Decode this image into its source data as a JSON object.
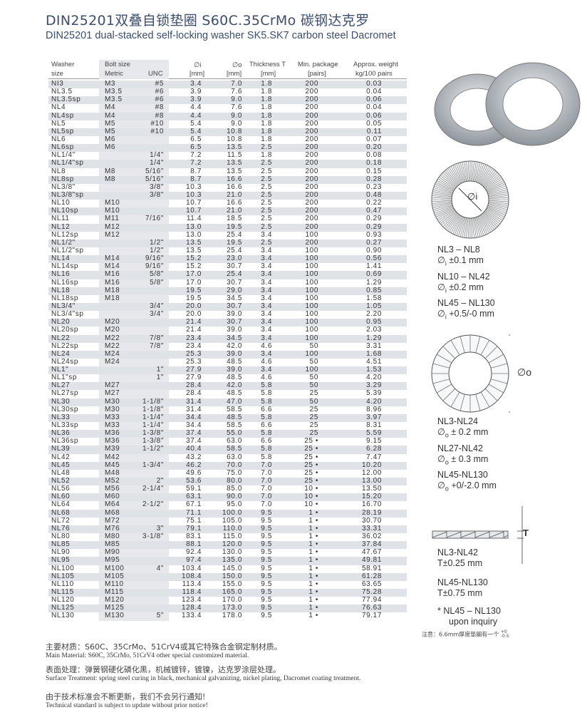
{
  "title_cn": "DIN25201双叠自锁垫圈 S60C.35CrMo 碳钢达克罗",
  "title_en": "DIN25201 dual-stacked self-locking washer SK5.SK7 carbon steel Dacromet",
  "headers": {
    "washer1": "Washer",
    "washer2": "size",
    "bolt": "Bolt size",
    "metric": "Metric",
    "unc": "UNC",
    "di": "∅i",
    "di_unit": "[mm]",
    "do": "∅o",
    "do_unit": "[mm]",
    "t": "Thickness T",
    "t_unit": "[mm]",
    "pkg": "Min. package",
    "pkg_unit": "[pairs]",
    "wt": "Approx. weight",
    "wt_unit": "kg/100 pairs"
  },
  "rows": [
    [
      "NI3",
      "M3",
      "#5",
      "3.4",
      "7.0",
      "1.8",
      "200",
      "0.03"
    ],
    [
      "NL3.5",
      "M3.5",
      "#6",
      "3.9",
      "7.6",
      "1.8",
      "200",
      "0.04"
    ],
    [
      "NL3.5sp",
      "M3.5",
      "#6",
      "3.9",
      "9.0",
      "1.8",
      "200",
      "0.06"
    ],
    [
      "NL4",
      "M4",
      "#8",
      "4.4",
      "7.6",
      "1.8",
      "200",
      "0.04"
    ],
    [
      "NL4sp",
      "M4",
      "#8",
      "4.4",
      "9.0",
      "1.8",
      "200",
      "0.06"
    ],
    [
      "NL5",
      "M5",
      "#10",
      "5.4",
      "9.0",
      "1.8",
      "200",
      "0.05"
    ],
    [
      "NL5sp",
      "M5",
      "#10",
      "5.4",
      "10.8",
      "1.8",
      "200",
      "0.11"
    ],
    [
      "NL6",
      "M6",
      "",
      "6.5",
      "10.8",
      "1.8",
      "200",
      "0.07"
    ],
    [
      "NL6sp",
      "M6",
      "",
      "6.5",
      "13.5",
      "2.5",
      "200",
      "0.20"
    ],
    [
      "NL1/4\"",
      "",
      "1/4\"",
      "7.2",
      "11.5",
      "1.8",
      "200",
      "0.08"
    ],
    [
      "NL1/4\"sp",
      "",
      "1/4\"",
      "7.2",
      "13.5",
      "2.5",
      "200",
      "0.18"
    ],
    [
      "NL8",
      "M8",
      "5/16\"",
      "8.7",
      "13.5",
      "2.5",
      "200",
      "0.15"
    ],
    [
      "NL8sp",
      "M8",
      "5/16\"",
      "8.7",
      "16.6",
      "2.5",
      "200",
      "0.28"
    ],
    [
      "NL3/8\"",
      "",
      "3/8\"",
      "10.3",
      "16.6",
      "2.5",
      "200",
      "0.23"
    ],
    [
      "NL3/8\"sp",
      "",
      "3/8\"",
      "10.3",
      "21.0",
      "2.5",
      "200",
      "0.48"
    ],
    [
      "NL10",
      "M10",
      "",
      "10.7",
      "16.6",
      "2.5",
      "200",
      "0.22"
    ],
    [
      "NL10sp",
      "M10",
      "",
      "10.7",
      "21.0",
      "2.5",
      "200",
      "0.47"
    ],
    [
      "NL11",
      "M11",
      "7/16\"",
      "11.4",
      "18.5",
      "2.5",
      "200",
      "0.29"
    ],
    [
      "NL12",
      "M12",
      "",
      "13.0",
      "19.5",
      "2.5",
      "200",
      "0.29"
    ],
    [
      "NL12sp",
      "M12",
      "",
      "13.0",
      "25.4",
      "3.4",
      "100",
      "0.93"
    ],
    [
      "NL1/2\"",
      "",
      "1/2\"",
      "13.5",
      "19.5",
      "2.5",
      "200",
      "0.27"
    ],
    [
      "NL1/2\"sp",
      "",
      "1/2\"",
      "13.5",
      "25.4",
      "3.4",
      "100",
      "0.90"
    ],
    [
      "NL14",
      "M14",
      "9/16\"",
      "15.2",
      "23.0",
      "3.4",
      "100",
      "0.56"
    ],
    [
      "NL14sp",
      "M14",
      "9/16\"",
      "15.2",
      "30.7",
      "3.4",
      "100",
      "1.41"
    ],
    [
      "NL16",
      "M16",
      "5/8\"",
      "17.0",
      "25.4",
      "3.4",
      "100",
      "0.69"
    ],
    [
      "NL16sp",
      "M16",
      "5/8\"",
      "17.0",
      "30.7",
      "3.4",
      "100",
      "1.29"
    ],
    [
      "NL18",
      "M18",
      "",
      "19.5",
      "29.0",
      "3.4",
      "100",
      "0.85"
    ],
    [
      "NL18sp",
      "M18",
      "",
      "19.5",
      "34.5",
      "3.4",
      "100",
      "1.58"
    ],
    [
      "NL3/4\"",
      "",
      "3/4\"",
      "20.0",
      "30.7",
      "3.4",
      "100",
      "1.05"
    ],
    [
      "NL3/4\"sp",
      "",
      "3/4\"",
      "20.0",
      "39.0",
      "3.4",
      "100",
      "2.20"
    ],
    [
      "NL20",
      "M20",
      "",
      "21.4",
      "30.7",
      "3.4",
      "100",
      "0.95"
    ],
    [
      "NL20sp",
      "M20",
      "",
      "21.4",
      "39.0",
      "3.4",
      "100",
      "2.03"
    ],
    [
      "NL22",
      "M22",
      "7/8\"",
      "23.4",
      "34.5",
      "3.4",
      "100",
      "1.29"
    ],
    [
      "NL22sp",
      "M22",
      "7/8\"",
      "23.4",
      "42.0",
      "4.6",
      "50",
      "3.31"
    ],
    [
      "NL24",
      "M24",
      "",
      "25.3",
      "39.0",
      "3.4",
      "100",
      "1.68"
    ],
    [
      "NL24sp",
      "M24",
      "",
      "25.3",
      "48.5",
      "4.6",
      "50",
      "4.51"
    ],
    [
      "NL1\"",
      "",
      "1\"",
      "27.9",
      "39.0",
      "3.4",
      "100",
      "1.53"
    ],
    [
      "NL1\"sp",
      "",
      "1\"",
      "27.9",
      "48.5",
      "4.6",
      "50",
      "4.20"
    ],
    [
      "NL27",
      "M27",
      "",
      "28.4",
      "42.0",
      "5.8",
      "50",
      "3.29"
    ],
    [
      "NL27sp",
      "M27",
      "",
      "28.4",
      "48.5",
      "5.8",
      "25",
      "5.39"
    ],
    [
      "NL30",
      "M30",
      "1-1/8\"",
      "31.4",
      "47.0",
      "5.8",
      "50",
      "4.20"
    ],
    [
      "NL30sp",
      "M30",
      "1-1/8\"",
      "31.4",
      "58.5",
      "6.6",
      "25",
      "8.96"
    ],
    [
      "NL33",
      "M33",
      "1-1/4\"",
      "34.4",
      "48.5",
      "5.8",
      "25",
      "3.97"
    ],
    [
      "NL33sp",
      "M33",
      "1-1/4\"",
      "34.4",
      "58.5",
      "6.6",
      "25",
      "8.31"
    ],
    [
      "NL36",
      "M36",
      "1-3/8\"",
      "37.4",
      "55.0",
      "5.8",
      "25",
      "5.59"
    ],
    [
      "NL36sp",
      "M36",
      "1-3/8\"",
      "37.4",
      "63.0",
      "6.6",
      "25 •",
      "9.15"
    ],
    [
      "NL39",
      "M39",
      "1-1/2\"",
      "40.4",
      "58.5",
      "5.8",
      "25 •",
      "6.28"
    ],
    [
      "NL42",
      "M42",
      "",
      "43.2",
      "63.0",
      "5.8",
      "25 •",
      "7.47"
    ],
    [
      "NL45",
      "M45",
      "1-3/4\"",
      "46.2",
      "70.0",
      "7.0",
      "25 •",
      "10.20"
    ],
    [
      "NL48",
      "M48",
      "",
      "49.6",
      "75.0",
      "7.0",
      "25 •",
      "12.00"
    ],
    [
      "NL52",
      "M52",
      "2\"",
      "53.6",
      "80.0",
      "7.0",
      "25 •",
      "13.00"
    ],
    [
      "NL56",
      "M56",
      "2-1/4\"",
      "59.1",
      "85.0",
      "7.0",
      "10 •",
      "13.50"
    ],
    [
      "NL60",
      "M60",
      "",
      "63.1",
      "90.0",
      "7.0",
      "10 •",
      "15.20"
    ],
    [
      "NL64",
      "M64",
      "2-1/2\"",
      "67.1",
      "95.0",
      "7.0",
      "10 •",
      "16.70"
    ],
    [
      "NL68",
      "M68",
      "",
      "71.1",
      "100.0",
      "9.5",
      "1 •",
      "28.19"
    ],
    [
      "NL72",
      "M72",
      "",
      "75.1",
      "105.0",
      "9.5",
      "1 •",
      "30.70"
    ],
    [
      "NL76",
      "M76",
      "3\"",
      "79.1",
      "110.0",
      "9.5",
      "1 •",
      "33.31"
    ],
    [
      "NL80",
      "M80",
      "3-1/8\"",
      "83.1",
      "115.0",
      "9.5",
      "1 •",
      "36.02"
    ],
    [
      "NL85",
      "M85",
      "",
      "88.1",
      "120.0",
      "9.5",
      "1 •",
      "37.84"
    ],
    [
      "NL90",
      "M90",
      "",
      "92.4",
      "130.0",
      "9.5",
      "1 •",
      "47.67"
    ],
    [
      "NL95",
      "M95",
      "",
      "97.4",
      "135.0",
      "9.5",
      "1 •",
      "49.81"
    ],
    [
      "NL100",
      "M100",
      "4\"",
      "103.4",
      "145.0",
      "9.5",
      "1 •",
      "58.91"
    ],
    [
      "NL105",
      "M105",
      "",
      "108.4",
      "150.0",
      "9.5",
      "1 •",
      "61.28"
    ],
    [
      "NL110",
      "M110",
      "",
      "113.4",
      "155.0",
      "9.5",
      "1 •",
      "63.65"
    ],
    [
      "NL115",
      "M115",
      "",
      "118.4",
      "165.0",
      "9.5",
      "1 •",
      "75.28"
    ],
    [
      "NL120",
      "M120",
      "",
      "123.4",
      "170.0",
      "9.5",
      "1 •",
      "77.94"
    ],
    [
      "NL125",
      "M125",
      "",
      "128.4",
      "173.0",
      "9.5",
      "1 •",
      "76.63"
    ],
    [
      "NL130",
      "M130",
      "5\"",
      "133.4",
      "178.0",
      "9.5",
      "1 •",
      "79.17"
    ]
  ],
  "tol_inner": [
    {
      "range": "NL3 – NL8",
      "tol": "±0.1 mm"
    },
    {
      "range": "NL10 – NL42",
      "tol": "±0.2 mm"
    },
    {
      "range": "NL45 – NL130",
      "tol": "+0.5/-0 mm"
    }
  ],
  "tol_outer": [
    {
      "range": "NL3-NL24",
      "tol": "± 0.2 mm"
    },
    {
      "range": "NL27-NL42",
      "tol": "± 0.3 mm"
    },
    {
      "range": "NL45-NL130",
      "tol": "+0/-2.0 mm"
    }
  ],
  "tol_t": [
    {
      "range": "NL3-NL42",
      "tol": "T±0.25 mm"
    },
    {
      "range": "NL45-NL130",
      "tol": "T±0.75 mm"
    }
  ],
  "diag": {
    "di": "∅i",
    "do": "∅o",
    "t": "T"
  },
  "inquiry": {
    "line1": "* NL45 – NL130",
    "line2": "upon inquiry"
  },
  "note_cn": "注意：6.6mm厚度垫圈有一个",
  "note_tol": {
    "up": "+0",
    "down": "-0.5"
  },
  "footer": [
    {
      "cn": "主要材质：S60C、35CrMo、51CrV4或其它特殊合金钢定制材质。",
      "en": "Main Material: S60C, 35CrMo, 51CrV4 other special customized material."
    },
    {
      "cn": "表面处理：弹簧钢硬化磷化黑，机械镀锌，镀镍，达克罗涂层处理。",
      "en": "Surface Treatment: spring steel curing in black, mechanical galvanizing, nickel plating, Dacromet coating treatment."
    },
    {
      "cn": "由于技术标准会不断更新，我们不会另行通知!",
      "en": "Technical standard is subject to update without prior notice!"
    }
  ]
}
